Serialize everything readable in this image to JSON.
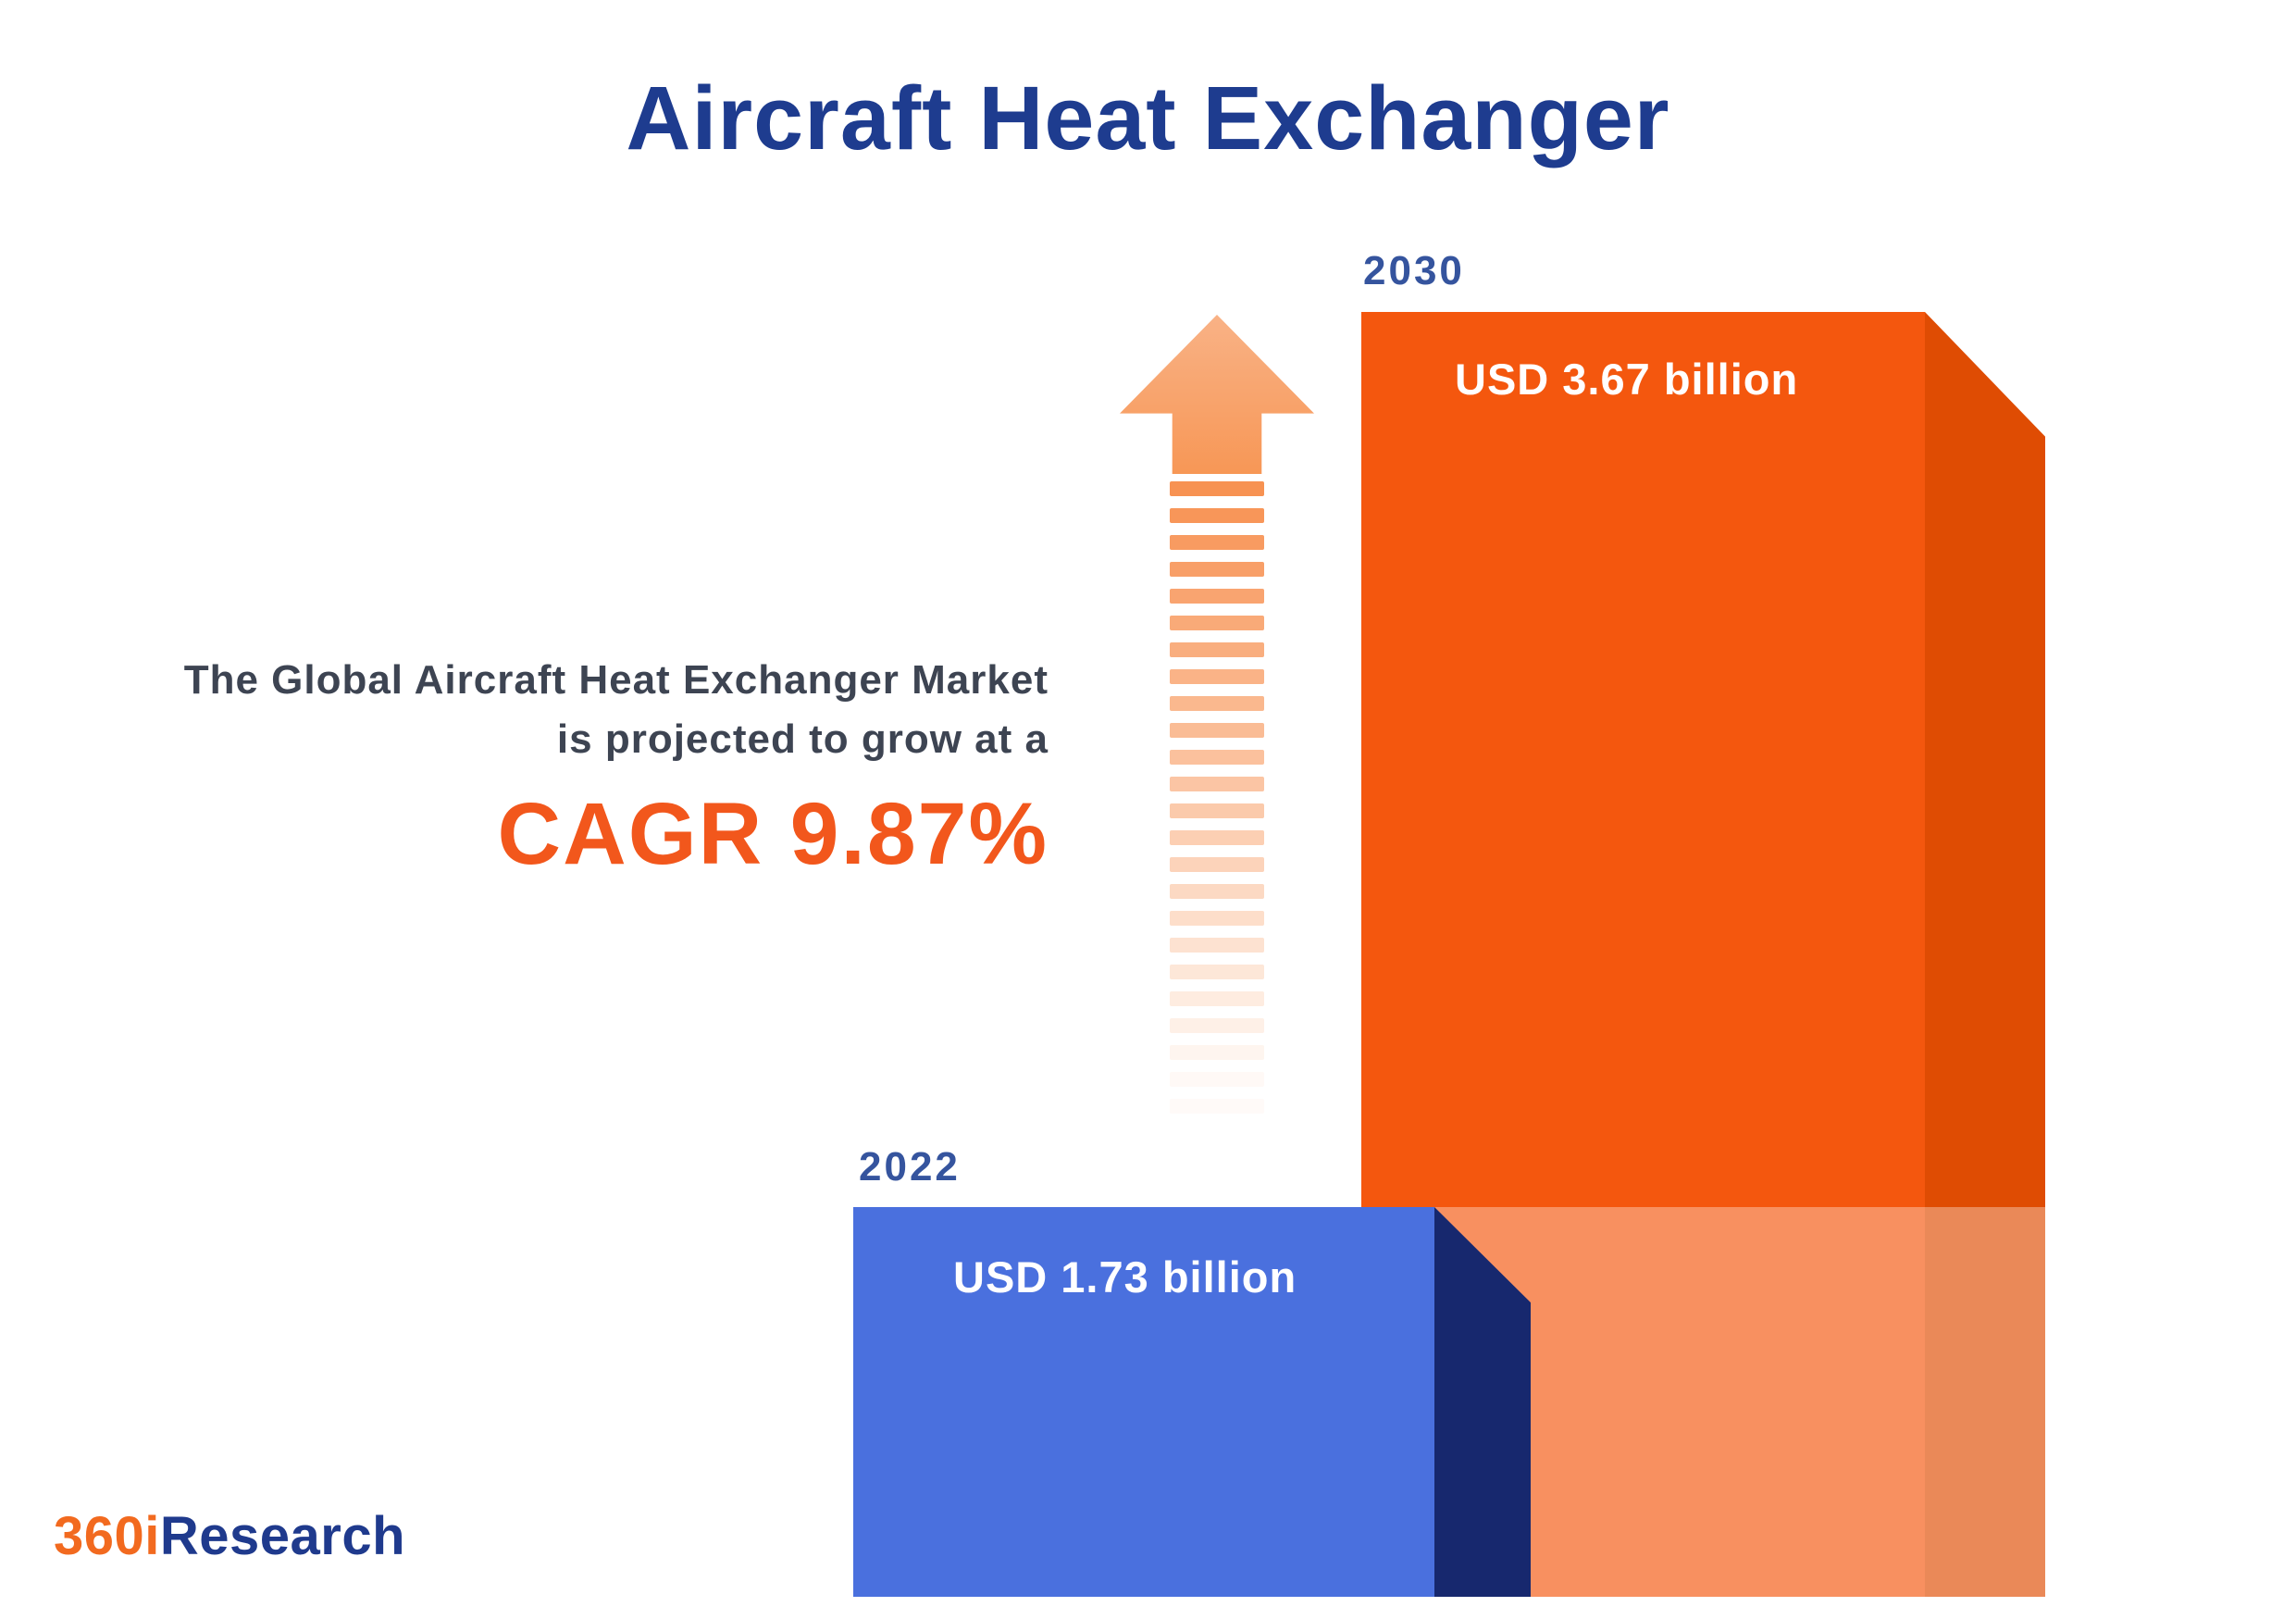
{
  "title": "Aircraft Heat Exchanger",
  "description": {
    "line1": "The Global Aircraft Heat Exchanger Market",
    "line2": "is projected to grow at a",
    "cagr": "CAGR 9.87%"
  },
  "bars": {
    "start": {
      "year": "2022",
      "value_label": "USD 1.73 billion"
    },
    "end": {
      "year": "2030",
      "value_label": "USD 3.67 billion"
    }
  },
  "logo": {
    "prefix": "360i",
    "suffix": "Research"
  },
  "icons": {
    "growth_arrow": "up-arrow-dashed"
  },
  "colors": {
    "title_blue": "#1e3c8f",
    "year_label_blue": "#35549e",
    "description_gray": "#3d4452",
    "cagr_orange": "#f2571c",
    "bar_2030_front": "#f4570e",
    "bar_2030_side": "#df4c03",
    "bar_2030_bottom_light": "#f78c5b",
    "bar_2022_front": "#4a70de",
    "bar_2022_side": "#17286e",
    "arrow_orange": "#f79756",
    "logo_orange": "#f26a1f",
    "logo_blue": "#1f3a8d",
    "background": "#ffffff"
  },
  "chart_data": {
    "type": "bar",
    "title": "Aircraft Heat Exchanger",
    "categories": [
      "2022",
      "2030"
    ],
    "values": [
      1.73,
      3.67
    ],
    "value_labels": [
      "USD 1.73 billion",
      "USD 3.67 billion"
    ],
    "unit": "USD billion",
    "ylim": [
      0,
      4
    ],
    "grid": false,
    "legend": false,
    "annotations": [
      "The Global Aircraft Heat Exchanger Market is projected to grow at a CAGR 9.87%"
    ],
    "bar_colors": [
      "#4a70de",
      "#f4570e"
    ]
  }
}
